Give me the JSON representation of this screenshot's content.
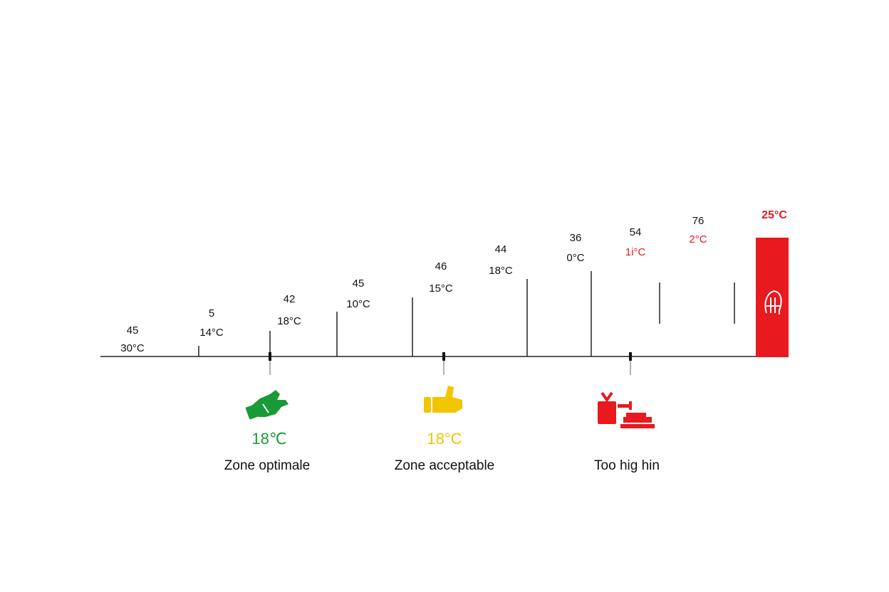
{
  "chart_data": {
    "type": "bar",
    "points": [
      {
        "top": "45",
        "temp": "30°C",
        "level": 0,
        "temp_color": "#111111"
      },
      {
        "top": "5",
        "temp": "14°C",
        "level": 1,
        "temp_color": "#111111"
      },
      {
        "top": "42",
        "temp": "18°C",
        "level": 2,
        "temp_color": "#111111"
      },
      {
        "top": "45",
        "temp": "10°C",
        "level": 3,
        "temp_color": "#111111"
      },
      {
        "top": "46",
        "temp": "15°C",
        "level": 4,
        "temp_color": "#111111"
      },
      {
        "top": "44",
        "temp": "18°C",
        "level": 5,
        "temp_color": "#111111"
      },
      {
        "top": "36",
        "temp": "0°C",
        "level": 6,
        "temp_color": "#111111"
      },
      {
        "top": "54",
        "temp": "1i°C",
        "level": 7,
        "temp_color": "#e8191f"
      },
      {
        "top": "76",
        "temp": "2°C",
        "level": 8,
        "temp_color": "#e8191f"
      }
    ],
    "final_bar": {
      "label": "25°C",
      "color": "#e8191f"
    },
    "zones": [
      {
        "temp": "18℃",
        "label": "Zone optimale",
        "color": "#1a9a36",
        "icon": "hand-icon"
      },
      {
        "temp": "18°C",
        "label": "Zone acceptable",
        "color": "#f2c500",
        "icon": "thumbs-up-icon"
      },
      {
        "temp": "",
        "label": "Too hig hin",
        "color": "#e8191f",
        "icon": "gift-scale-icon"
      }
    ]
  }
}
